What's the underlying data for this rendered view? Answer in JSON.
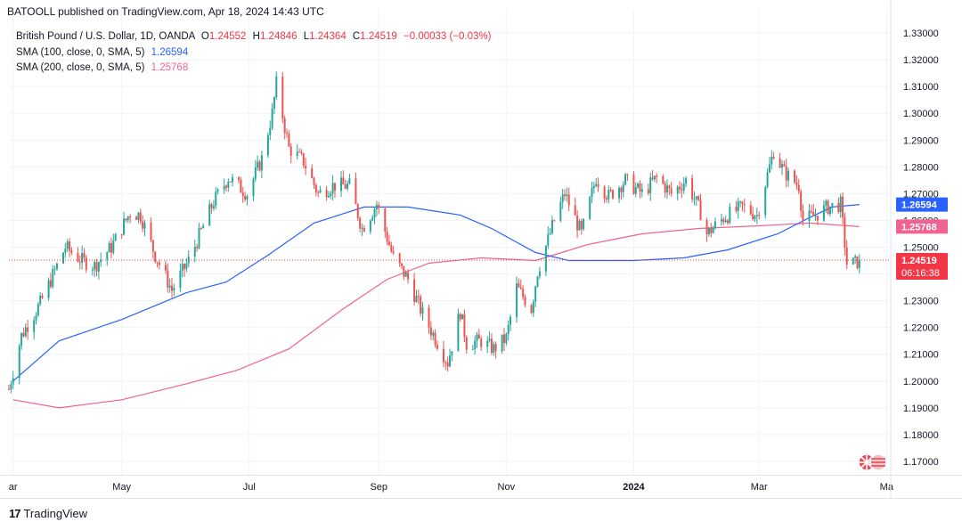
{
  "header": {
    "published": "BATOOLL published on TradingView.com, Apr 18, 2024 14:43 UTC"
  },
  "legend": {
    "symbol": "British Pound / U.S. Dollar, 1D, OANDA",
    "open_label": "O",
    "open": "1.24552",
    "high_label": "H",
    "high": "1.24846",
    "low_label": "L",
    "low": "1.24364",
    "close_label": "C",
    "close": "1.24519",
    "change": "−0.00033 (−0.03%)",
    "sma100_label": "SMA (100, close, 0, SMA, 5)",
    "sma100_value": "1.26594",
    "sma200_label": "SMA (200, close, 0, SMA, 5)",
    "sma200_value": "1.25768"
  },
  "footer": {
    "brand": "TradingView"
  },
  "colors": {
    "up": "#26a69a",
    "down": "#ef5350",
    "sma100": "#2962ff",
    "sma200": "#f06292",
    "price_badge": "#f23645",
    "sma100_badge": "#2962ff",
    "sma200_badge": "#f06292"
  },
  "chart_data": {
    "type": "candlestick",
    "symbol": "GBPUSD",
    "timeframe": "1D",
    "ylim": [
      1.165,
      1.335
    ],
    "y_ticks": [
      "1.17000",
      "1.18000",
      "1.19000",
      "1.20000",
      "1.21000",
      "1.22000",
      "1.23000",
      "1.24000",
      "1.25000",
      "1.26000",
      "1.27000",
      "1.28000",
      "1.29000",
      "1.30000",
      "1.31000",
      "1.32000",
      "1.33000"
    ],
    "x_labels": [
      "ar",
      "May",
      "Jul",
      "Sep",
      "Nov",
      "2024",
      "Mar",
      "Ma"
    ],
    "x_label_dates": [
      "2023-03-10",
      "2023-05-01",
      "2023-07-01",
      "2023-09-01",
      "2023-11-01",
      "2024-01-01",
      "2024-03-01",
      "2024-05-01"
    ],
    "x_range": [
      "2023-03-08",
      "2024-05-03"
    ],
    "price_path": [
      [
        "2023-03-08",
        1.197
      ],
      [
        "2023-03-14",
        1.217
      ],
      [
        "2023-03-23",
        1.229
      ],
      [
        "2023-04-04",
        1.25
      ],
      [
        "2023-04-12",
        1.245
      ],
      [
        "2023-04-18",
        1.243
      ],
      [
        "2023-04-26",
        1.25
      ],
      [
        "2023-05-05",
        1.263
      ],
      [
        "2023-05-10",
        1.262
      ],
      [
        "2023-05-17",
        1.247
      ],
      [
        "2023-05-25",
        1.234
      ],
      [
        "2023-06-02",
        1.245
      ],
      [
        "2023-06-14",
        1.267
      ],
      [
        "2023-06-21",
        1.276
      ],
      [
        "2023-06-30",
        1.27
      ],
      [
        "2023-07-07",
        1.283
      ],
      [
        "2023-07-12",
        1.3
      ],
      [
        "2023-07-14",
        1.311
      ],
      [
        "2023-07-20",
        1.287
      ],
      [
        "2023-07-27",
        1.282
      ],
      [
        "2023-08-03",
        1.27
      ],
      [
        "2023-08-10",
        1.273
      ],
      [
        "2023-08-18",
        1.273
      ],
      [
        "2023-08-24",
        1.257
      ],
      [
        "2023-08-31",
        1.266
      ],
      [
        "2023-09-08",
        1.246
      ],
      [
        "2023-09-15",
        1.238
      ],
      [
        "2023-09-22",
        1.225
      ],
      [
        "2023-10-04",
        1.207
      ],
      [
        "2023-10-10",
        1.226
      ],
      [
        "2023-10-13",
        1.214
      ],
      [
        "2023-10-20",
        1.215
      ],
      [
        "2023-10-26",
        1.212
      ],
      [
        "2023-11-01",
        1.216
      ],
      [
        "2023-11-06",
        1.235
      ],
      [
        "2023-11-13",
        1.227
      ],
      [
        "2023-11-16",
        1.241
      ],
      [
        "2023-11-24",
        1.26
      ],
      [
        "2023-11-29",
        1.27
      ],
      [
        "2023-12-07",
        1.255
      ],
      [
        "2023-12-14",
        1.276
      ],
      [
        "2023-12-20",
        1.269
      ],
      [
        "2023-12-28",
        1.275
      ],
      [
        "2024-01-05",
        1.27
      ],
      [
        "2024-01-12",
        1.276
      ],
      [
        "2024-01-19",
        1.27
      ],
      [
        "2024-01-26",
        1.275
      ],
      [
        "2024-02-02",
        1.263
      ],
      [
        "2024-02-05",
        1.255
      ],
      [
        "2024-02-13",
        1.261
      ],
      [
        "2024-02-22",
        1.265
      ],
      [
        "2024-02-29",
        1.262
      ],
      [
        "2024-03-08",
        1.286
      ],
      [
        "2024-03-13",
        1.278
      ],
      [
        "2024-03-20",
        1.273
      ],
      [
        "2024-03-22",
        1.26
      ],
      [
        "2024-03-28",
        1.262
      ],
      [
        "2024-04-03",
        1.265
      ],
      [
        "2024-04-09",
        1.266
      ],
      [
        "2024-04-12",
        1.244
      ],
      [
        "2024-04-16",
        1.244
      ],
      [
        "2024-04-18",
        1.24519
      ]
    ],
    "sma100_path": [
      [
        "2023-03-10",
        1.2
      ],
      [
        "2023-04-01",
        1.215
      ],
      [
        "2023-05-01",
        1.223
      ],
      [
        "2023-06-01",
        1.233
      ],
      [
        "2023-06-20",
        1.237
      ],
      [
        "2023-07-10",
        1.247
      ],
      [
        "2023-08-01",
        1.259
      ],
      [
        "2023-08-25",
        1.265
      ],
      [
        "2023-09-15",
        1.265
      ],
      [
        "2023-10-10",
        1.262
      ],
      [
        "2023-10-25",
        1.257
      ],
      [
        "2023-11-15",
        1.248
      ],
      [
        "2023-12-01",
        1.245
      ],
      [
        "2024-01-01",
        1.245
      ],
      [
        "2024-01-25",
        1.246
      ],
      [
        "2024-02-15",
        1.249
      ],
      [
        "2024-03-10",
        1.255
      ],
      [
        "2024-03-25",
        1.261
      ],
      [
        "2024-04-05",
        1.265
      ],
      [
        "2024-04-18",
        1.26594
      ]
    ],
    "sma200_path": [
      [
        "2023-03-10",
        1.193
      ],
      [
        "2023-04-01",
        1.19
      ],
      [
        "2023-05-01",
        1.193
      ],
      [
        "2023-06-01",
        1.199
      ],
      [
        "2023-06-25",
        1.204
      ],
      [
        "2023-07-20",
        1.212
      ],
      [
        "2023-08-15",
        1.227
      ],
      [
        "2023-09-05",
        1.238
      ],
      [
        "2023-09-25",
        1.244
      ],
      [
        "2023-10-20",
        1.246
      ],
      [
        "2023-11-15",
        1.245
      ],
      [
        "2023-12-10",
        1.251
      ],
      [
        "2024-01-05",
        1.255
      ],
      [
        "2024-02-01",
        1.257
      ],
      [
        "2024-03-01",
        1.258
      ],
      [
        "2024-03-25",
        1.259
      ],
      [
        "2024-04-18",
        1.25768
      ]
    ],
    "last_price": {
      "value": "1.24519",
      "countdown": "06:16:38"
    },
    "sma100_last": {
      "value": "1.26594"
    },
    "sma200_last": {
      "value": "1.25768"
    }
  }
}
